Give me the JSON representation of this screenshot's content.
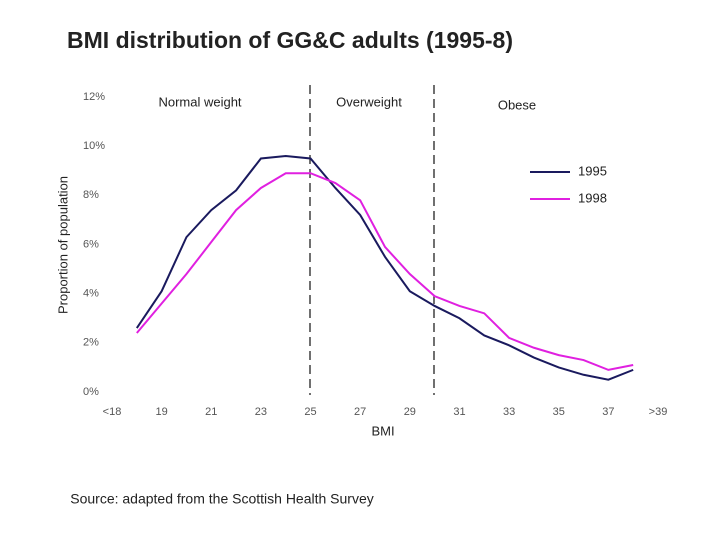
{
  "chart_data": {
    "type": "line",
    "title": "BMI distribution of GG&C adults (1995-8)",
    "xlabel": "BMI",
    "ylabel": "Proportion of population",
    "source": "Source: adapted from the Scottish Health Survey",
    "annotations": [
      "Normal weight",
      "Overweight",
      "Obese"
    ],
    "categories": [
      "<18",
      null,
      "19",
      null,
      "21",
      null,
      "23",
      null,
      "25",
      null,
      "27",
      null,
      "29",
      null,
      "31",
      null,
      "33",
      null,
      "35",
      null,
      "37",
      null,
      ">39"
    ],
    "series": [
      {
        "name": "1995",
        "color": "#1a1a5e",
        "values": [
          null,
          2.6,
          4.1,
          6.3,
          7.4,
          8.2,
          9.5,
          9.6,
          9.5,
          8.3,
          7.2,
          5.5,
          4.1,
          3.5,
          3.0,
          2.3,
          1.9,
          1.4,
          1.0,
          0.7,
          0.5,
          0.9,
          null
        ]
      },
      {
        "name": "1998",
        "color": "#e020e0",
        "values": [
          null,
          2.4,
          3.6,
          4.8,
          6.1,
          7.4,
          8.3,
          8.9,
          8.9,
          8.5,
          7.8,
          5.9,
          4.8,
          3.9,
          3.5,
          3.2,
          2.2,
          1.8,
          1.5,
          1.3,
          0.9,
          1.1,
          null
        ]
      }
    ],
    "ylim": [
      0,
      12
    ],
    "yticks": [
      {
        "value": 0,
        "label": "0%"
      },
      {
        "value": 2,
        "label": "2%"
      },
      {
        "value": 4,
        "label": "4%"
      },
      {
        "value": 6,
        "label": "6%"
      },
      {
        "value": 8,
        "label": "8%"
      },
      {
        "value": 10,
        "label": "10%"
      },
      {
        "value": 12,
        "label": "12%"
      }
    ],
    "grid": false,
    "legend": "upper right"
  }
}
